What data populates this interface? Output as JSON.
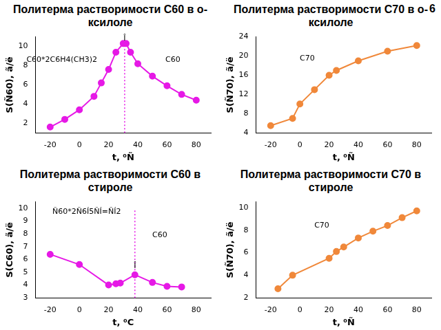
{
  "page_number": "6",
  "chart_data": [
    {
      "type": "line",
      "title": "Политерма растворимости C60 в о-ксилоле",
      "x_label": "t, ⁰Ñ",
      "y_label": "S(Ñ60), ã/ë",
      "series": [
        {
          "name": "C60",
          "color": "#e619e6",
          "marker": "circle",
          "line_style": "solid",
          "x": [
            -20,
            -10,
            0,
            10,
            15,
            20,
            25,
            30,
            32,
            35,
            40,
            50,
            60,
            70,
            80
          ],
          "values": [
            1.6,
            2.4,
            3.4,
            4.8,
            6.2,
            7.6,
            9.4,
            10.3,
            10.3,
            9.4,
            8.2,
            6.9,
            5.9,
            5.0,
            4.4
          ]
        }
      ],
      "xlim": [
        -30,
        90
      ],
      "xticks": [
        -20,
        0,
        20,
        40,
        60,
        80
      ],
      "ylim": [
        1,
        11
      ],
      "yticks": [
        2,
        4,
        6,
        8,
        10
      ],
      "grid": false,
      "eutectic_x": 31,
      "annotations": [
        {
          "text": "C60*2C6H4(CH3)2",
          "x": -12,
          "y": 8.6
        },
        {
          "text": "C60",
          "x": 64,
          "y": 8.6
        },
        {
          "text": "Î",
          "x": 31,
          "y": 10.85
        }
      ]
    },
    {
      "type": "line",
      "title": "Политерма растворимости C70 в о-ксилоле",
      "x_label": "t, ⁰Ñ",
      "y_label": "S(Ñ70), ã/ë",
      "series": [
        {
          "name": "C70",
          "color": "#f0883a",
          "marker": "circle",
          "line_style": "solid",
          "x": [
            -20,
            -5,
            0,
            10,
            20,
            25,
            40,
            60,
            80
          ],
          "values": [
            5.5,
            7.0,
            10.0,
            13.0,
            16.0,
            17.0,
            19.0,
            21.0,
            22.2
          ]
        }
      ],
      "xlim": [
        -30,
        90
      ],
      "xticks": [
        -20,
        0,
        20,
        40,
        60,
        80
      ],
      "ylim": [
        4,
        24
      ],
      "yticks": [
        4,
        8,
        12,
        16,
        20,
        24
      ],
      "grid": false,
      "annotations": [
        {
          "text": "C70",
          "x": 5,
          "y": 19.5
        }
      ]
    },
    {
      "type": "line",
      "title": "Политерма растворимости C60 в стироле",
      "x_label": "t, ⁰C",
      "y_label": "S(C60), ã/ë",
      "series": [
        {
          "name": "C60",
          "color": "#e619e6",
          "marker": "circle",
          "line_style": "solid",
          "x": [
            -20,
            0,
            20,
            25,
            28,
            38,
            50,
            60,
            70
          ],
          "values": [
            6.4,
            5.6,
            4.0,
            4.1,
            4.15,
            4.8,
            4.2,
            3.9,
            3.85
          ]
        }
      ],
      "xlim": [
        -30,
        90
      ],
      "xticks": [
        -20,
        0,
        20,
        40,
        60,
        80
      ],
      "ylim": [
        3,
        10.5
      ],
      "yticks": [
        3,
        4,
        5,
        6,
        7,
        8,
        9,
        10
      ],
      "grid": false,
      "eutectic_x": 38,
      "annotations": [
        {
          "text": "Ñ60*2Ñ6Í5ÑÍ=ÑÍ2",
          "x": 5,
          "y": 9.7
        },
        {
          "text": "C60",
          "x": 55,
          "y": 7.9
        },
        {
          "text": "Î",
          "x": 38,
          "y": 5.5
        }
      ]
    },
    {
      "type": "line",
      "title": "Политерма растворимости C70 в стироле",
      "x_label": "t, ⁰Ñ",
      "y_label": "S(Ñ70), ã/ë",
      "series": [
        {
          "name": "C70",
          "color": "#f0883a",
          "marker": "circle",
          "line_style": "solid",
          "x": [
            -15,
            -5,
            20,
            25,
            30,
            40,
            50,
            60,
            70,
            80
          ],
          "values": [
            2.8,
            4.0,
            5.5,
            6.1,
            6.5,
            7.3,
            7.9,
            8.4,
            9.1,
            9.7
          ]
        }
      ],
      "xlim": [
        -30,
        90
      ],
      "xticks": [
        -20,
        0,
        20,
        40,
        60,
        80
      ],
      "ylim": [
        2,
        10.5
      ],
      "yticks": [
        2,
        4,
        6,
        8,
        10
      ],
      "grid": false,
      "annotations": [
        {
          "text": "C70",
          "x": 15,
          "y": 8.4
        }
      ]
    }
  ]
}
